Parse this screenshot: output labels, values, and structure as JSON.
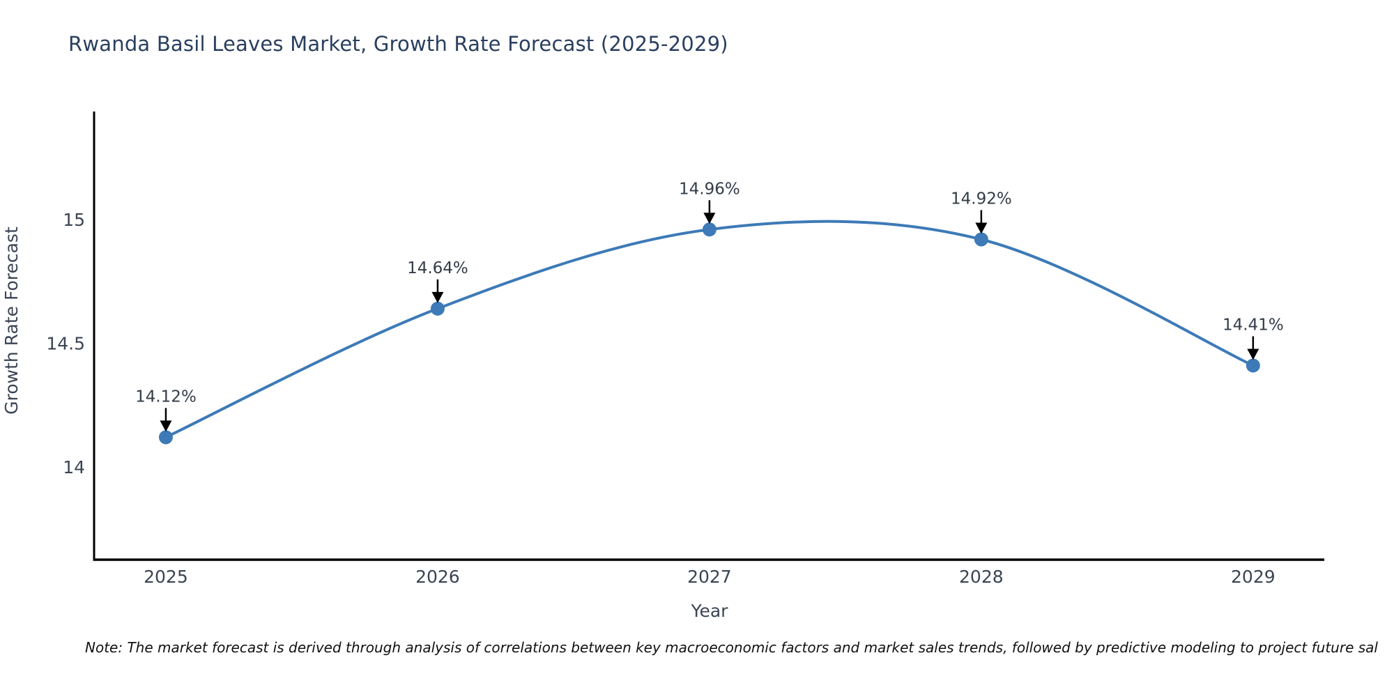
{
  "title": "Rwanda Basil Leaves Market, Growth Rate Forecast (2025-2029)",
  "footnote": "Note: The market forecast is derived through analysis of correlations between key macroeconomic factors and market sales trends, followed by predictive modeling to project future sal",
  "chart_data": {
    "type": "line",
    "categories": [
      "2025",
      "2026",
      "2027",
      "2028",
      "2029"
    ],
    "x": [
      2025,
      2026,
      2027,
      2028,
      2029
    ],
    "values": [
      14.12,
      14.64,
      14.96,
      14.92,
      14.41
    ],
    "point_labels": [
      "14.12%",
      "14.64%",
      "14.96%",
      "14.92%",
      "14.41%"
    ],
    "title": "Rwanda Basil Leaves Market, Growth Rate Forecast (2025-2029)",
    "xlabel": "Year",
    "ylabel": "Growth Rate Forecast",
    "yticks": [
      14,
      14.5,
      15
    ],
    "ytick_labels": [
      "14",
      "14.5",
      "15"
    ],
    "xlim": [
      2024.736,
      2029.262
    ],
    "ylim": [
      13.625,
      15.437
    ],
    "grid": false,
    "legend": "none",
    "smooth": true,
    "line_color": "#3d7ab7",
    "marker_color": "#3d7ab7",
    "axis_color": "#000000",
    "arrow_color": "#000000",
    "tick_text_color": "#3b4454",
    "annotation_text_color": "#333c47"
  }
}
